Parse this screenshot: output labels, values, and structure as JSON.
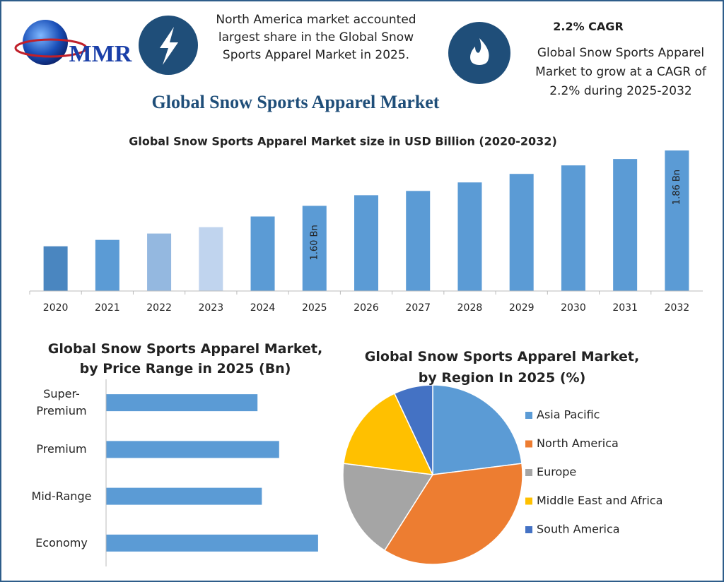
{
  "header": {
    "logo": "MMR",
    "callout": "North America market accounted largest share in the Global Snow Sports Apparel Market in 2025.",
    "cagr_title": "2.2% CAGR",
    "cagr_text": "Global Snow Sports Apparel Market to grow at a CAGR of 2.2% during 2025-2032",
    "title": "Global Snow Sports Apparel Market"
  },
  "chart_data": [
    {
      "type": "bar",
      "title": "Global Snow Sports Apparel Market size in USD Billion (2020-2032)",
      "categories": [
        "2020",
        "2021",
        "2022",
        "2023",
        "2024",
        "2025",
        "2026",
        "2027",
        "2028",
        "2029",
        "2030",
        "2031",
        "2032"
      ],
      "values": [
        1.41,
        1.44,
        1.47,
        1.5,
        1.55,
        1.6,
        1.65,
        1.67,
        1.71,
        1.75,
        1.79,
        1.82,
        1.86
      ],
      "value_labels": [
        null,
        null,
        null,
        null,
        null,
        "1.60 Bn",
        null,
        null,
        null,
        null,
        null,
        null,
        "1.86 Bn"
      ],
      "colors": [
        "#4a86c0",
        "#5b9bd5",
        "#94b8e0",
        "#c0d4ee",
        "#5b9bd5",
        "#5b9bd5",
        "#5b9bd5",
        "#5b9bd5",
        "#5b9bd5",
        "#5b9bd5",
        "#5b9bd5",
        "#5b9bd5",
        "#5b9bd5"
      ],
      "ylim": [
        1.2,
        1.9
      ]
    },
    {
      "type": "barh",
      "title": "Global Snow Sports Apparel Market, by Price Range in 2025 (Bn)",
      "categories": [
        "Super-Premium",
        "Premium",
        "Mid-Range",
        "Economy"
      ],
      "values": [
        0.35,
        0.4,
        0.36,
        0.49
      ],
      "color": "#5b9bd5",
      "xlim": [
        0,
        0.5
      ]
    },
    {
      "type": "pie",
      "title": "Global Snow Sports Apparel Market, by Region In 2025 (%)",
      "categories": [
        "Asia Pacific",
        "North America",
        "Europe",
        "Middle East and Africa",
        "South America"
      ],
      "values": [
        23,
        36,
        18,
        16,
        7
      ],
      "colors": [
        "#5b9bd5",
        "#ed7d31",
        "#a5a5a5",
        "#ffc000",
        "#4472c4"
      ],
      "legend": "right"
    }
  ]
}
